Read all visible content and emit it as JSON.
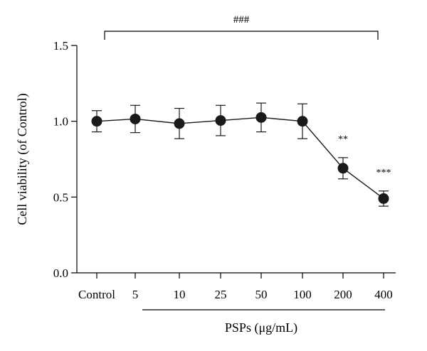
{
  "chart_data": {
    "type": "line",
    "categories": [
      "Control",
      "5",
      "10",
      "25",
      "50",
      "100",
      "200",
      "400"
    ],
    "series": [
      {
        "values": [
          1.0,
          1.015,
          0.985,
          1.005,
          1.025,
          1.0,
          0.69,
          0.49
        ],
        "error": [
          0.07,
          0.09,
          0.1,
          0.1,
          0.095,
          0.115,
          0.07,
          0.05
        ]
      }
    ],
    "annotations": [
      "",
      "",
      "",
      "",
      "",
      "",
      "**",
      "***"
    ],
    "bracket_label": "###",
    "ylabel": "Cell viability (of Control)",
    "xlabel_group": "PSPs (μg/mL)",
    "yticks": [
      "0.0",
      "0.5",
      "1.0",
      "1.5"
    ],
    "ylim": [
      0,
      1.5
    ],
    "grid": false,
    "legend": "none",
    "colors": {
      "marker": "#1a1a1a",
      "axis": "#000000"
    }
  }
}
